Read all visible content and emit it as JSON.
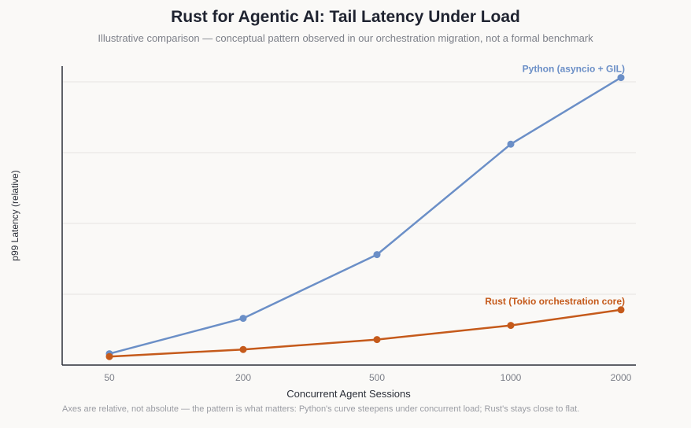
{
  "chart_data": {
    "type": "line",
    "title": "Rust for Agentic AI: Tail Latency Under Load",
    "subtitle": "Illustrative comparison — conceptual pattern observed in our orchestration migration, not a formal benchmark",
    "xlabel": "Concurrent Agent Sessions",
    "ylabel": "p99 Latency (relative)",
    "categories": [
      "50",
      "200",
      "500",
      "1000",
      "2000"
    ],
    "x_scale": "categorical",
    "ylim": [
      0,
      100
    ],
    "y_gridlines": [
      25,
      50,
      75,
      100
    ],
    "y_tick_labels_shown": false,
    "grid": true,
    "series": [
      {
        "name": "Python (asyncio + GIL)",
        "color": "#6b8fc7",
        "values": [
          4,
          16.5,
          39,
          78,
          101.5
        ]
      },
      {
        "name": "Rust (Tokio orchestration core)",
        "color": "#c55a1b",
        "values": [
          3,
          5.5,
          9,
          14,
          19.5
        ]
      }
    ]
  },
  "footnote": "Axes are relative, not absolute — the pattern is what matters: Python's curve steepens under concurrent load; Rust's stays close to flat."
}
